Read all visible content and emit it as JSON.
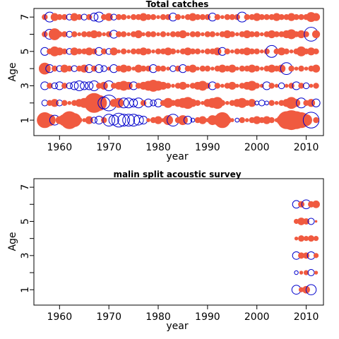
{
  "chart_data": [
    {
      "type": "scatter",
      "title": "Total catches",
      "xlabel": "year",
      "ylabel": "Age",
      "xlim": [
        1954.8,
        2013.5
      ],
      "ylim": [
        0.1,
        7.5
      ],
      "xticks": [
        1960,
        1970,
        1980,
        1990,
        2000,
        2010
      ],
      "yticks": [
        1,
        2,
        3,
        4,
        5,
        6,
        7
      ],
      "ytick_labels": [
        "1",
        "",
        "3",
        "",
        "5",
        "",
        "7"
      ],
      "colors": {
        "positive": "#f05a40",
        "negative": "#0000cc"
      },
      "year_range": [
        1957,
        2012
      ],
      "ages": [
        1,
        2,
        3,
        4,
        5,
        6,
        7
      ],
      "residual_sizes": {
        "1": [
          0.8,
          0.6,
          -0.5,
          0.4,
          0.6,
          0.9,
          0.7,
          0.3,
          0.2,
          0.4,
          -0.3,
          -0.4,
          0.3,
          -0.6,
          -0.5,
          -0.7,
          -0.6,
          -0.6,
          -0.6,
          -0.5,
          -0.4,
          0.2,
          0.3,
          0.4,
          0.2,
          0.5,
          -0.6,
          0.3,
          0.5,
          -0.4,
          -0.2,
          0.3,
          0.4,
          0.2,
          0.5,
          0.5,
          0.8,
          0.4,
          0.2,
          -0.2,
          0.3,
          0.2,
          0.3,
          0.4,
          0.3,
          0.4,
          0.3,
          0.2,
          0.5,
          0.9,
          1.0,
          0.9,
          0.8,
          0.6,
          -0.8,
          0.3
        ],
        "2": [
          -0.3,
          0.3,
          0.4,
          -0.3,
          0.3,
          0.2,
          0.3,
          0.4,
          0.5,
          0.6,
          1.0,
          0.8,
          -0.6,
          -0.8,
          0.4,
          0.5,
          -0.5,
          -0.5,
          -0.4,
          -0.5,
          0.3,
          -0.4,
          -0.3,
          -0.4,
          0.3,
          0.5,
          0.3,
          0.4,
          0.5,
          0.6,
          0.4,
          0.3,
          0.2,
          0.4,
          0.5,
          0.6,
          0.3,
          0.2,
          0.3,
          0.4,
          0.5,
          0.3,
          0.4,
          -0.2,
          -0.3,
          -0.2,
          0.3,
          0.2,
          0.3,
          0.4,
          0.6,
          0.4,
          -0.5,
          0.3,
          0.4,
          -0.4
        ],
        "3": [
          -0.4,
          0.3,
          -0.3,
          -0.4,
          0.3,
          -0.3,
          -0.4,
          -0.5,
          -0.4,
          -0.4,
          -0.5,
          0.3,
          0.4,
          -0.5,
          0.3,
          0.4,
          0.5,
          0.4,
          -0.4,
          0.3,
          0.4,
          0.5,
          0.6,
          0.5,
          0.4,
          0.3,
          0.2,
          0.3,
          0.4,
          0.2,
          0.3,
          0.4,
          0.5,
          0.3,
          -0.4,
          0.3,
          0.2,
          0.3,
          0.4,
          0.2,
          0.3,
          0.4,
          0.5,
          0.3,
          0.2,
          -0.4,
          0.3,
          0.2,
          -0.3,
          0.2,
          0.3,
          -0.4,
          0.3,
          -0.3,
          0.2,
          0.3
        ],
        "4": [
          0.6,
          -0.4,
          0.3,
          -0.3,
          0.4,
          0.3,
          -0.3,
          0.3,
          0.4,
          -0.4,
          0.3,
          -0.4,
          -0.3,
          0.2,
          -0.4,
          0.3,
          0.4,
          0.3,
          0.2,
          0.4,
          0.3,
          0.3,
          -0.4,
          0.3,
          0.3,
          0.2,
          -0.3,
          0.3,
          -0.4,
          0.3,
          0.4,
          0.2,
          0.3,
          0.3,
          0.2,
          0.3,
          0.4,
          0.3,
          0.4,
          0.2,
          0.3,
          0.3,
          0.4,
          0.3,
          0.2,
          0.3,
          0.4,
          0.3,
          0.4,
          -0.6,
          0.3,
          0.2,
          0.3,
          0.2,
          0.3,
          0.4
        ],
        "5": [
          -0.4,
          0.3,
          0.5,
          0.4,
          0.3,
          -0.3,
          0.4,
          0.3,
          0.3,
          0.4,
          0.3,
          -0.4,
          0.3,
          -0.3,
          0.4,
          0.2,
          0.3,
          0.2,
          0.3,
          0.3,
          0.4,
          0.3,
          0.2,
          0.3,
          0.3,
          0.4,
          0.3,
          0.2,
          0.3,
          0.4,
          0.3,
          0.3,
          0.2,
          0.3,
          0.3,
          0.4,
          -0.4,
          0.3,
          0.2,
          0.3,
          0.3,
          0.4,
          0.3,
          0.3,
          0.2,
          0.3,
          -0.6,
          0.3,
          0.4,
          0.3,
          0.2,
          0.3,
          0.5,
          0.3,
          0.4,
          0.3
        ],
        "6": [
          0.3,
          -0.5,
          0.6,
          0.3,
          0.3,
          -0.3,
          0.3,
          0.2,
          0.3,
          0.3,
          0.4,
          0.3,
          0.2,
          0.3,
          -0.4,
          0.3,
          0.3,
          0.2,
          0.3,
          0.4,
          0.2,
          0.3,
          0.3,
          0.2,
          0.3,
          0.2,
          0.3,
          0.3,
          0.4,
          0.2,
          0.3,
          0.3,
          0.2,
          0.3,
          0.3,
          0.2,
          0.3,
          0.4,
          0.3,
          0.2,
          0.3,
          0.4,
          0.3,
          0.3,
          0.2,
          0.3,
          0.4,
          0.3,
          0.3,
          0.4,
          0.5,
          0.3,
          0.4,
          0.3,
          -0.7,
          0.4
        ],
        "7": [
          0.3,
          -0.5,
          0.4,
          0.3,
          0.3,
          -0.3,
          0.4,
          0.3,
          -0.3,
          0.3,
          -0.4,
          -0.5,
          0.3,
          0.4,
          -0.3,
          0.3,
          0.3,
          0.2,
          0.3,
          0.3,
          0.4,
          0.3,
          0.3,
          0.2,
          0.3,
          0.3,
          -0.4,
          0.3,
          0.2,
          0.3,
          0.4,
          0.3,
          0.3,
          0.3,
          -0.4,
          0.3,
          0.2,
          0.3,
          0.3,
          0.3,
          -0.5,
          0.3,
          0.3,
          0.4,
          0.3,
          0.3,
          0.3,
          0.4,
          0.3,
          0.3,
          0.4,
          0.3,
          0.3,
          0.3,
          0.5,
          0.4
        ]
      }
    },
    {
      "type": "scatter",
      "title": "malin split acoustic survey",
      "xlabel": "year",
      "ylabel": "Age",
      "xlim": [
        1954.8,
        2013.5
      ],
      "ylim": [
        0.1,
        7.5
      ],
      "xticks": [
        1960,
        1970,
        1980,
        1990,
        2000,
        2010
      ],
      "yticks": [
        1,
        2,
        3,
        4,
        5,
        6,
        7
      ],
      "ytick_labels": [
        "1",
        "",
        "3",
        "",
        "5",
        "",
        "7"
      ],
      "colors": {
        "positive": "#f05a40",
        "negative": "#0000cc"
      },
      "year_range": [
        2008,
        2012
      ],
      "ages": [
        1,
        2,
        3,
        4,
        5,
        6,
        7
      ],
      "residual_sizes": {
        "1": [
          -0.7,
          0.4,
          0.6,
          -0.8,
          0.0
        ],
        "2": [
          -0.3,
          0.3,
          0.4,
          -0.5,
          0.3
        ],
        "3": [
          -0.6,
          0.5,
          0.5,
          -0.6,
          0.4
        ],
        "4": [
          0.3,
          0.5,
          0.4,
          0.5,
          0.4
        ],
        "5": [
          0.4,
          0.6,
          0.5,
          -0.5,
          0.2
        ],
        "6": [
          -0.6,
          0.5,
          -0.7,
          0.5,
          0.6
        ],
        "7": [
          0,
          0,
          0,
          0,
          0
        ]
      }
    }
  ]
}
